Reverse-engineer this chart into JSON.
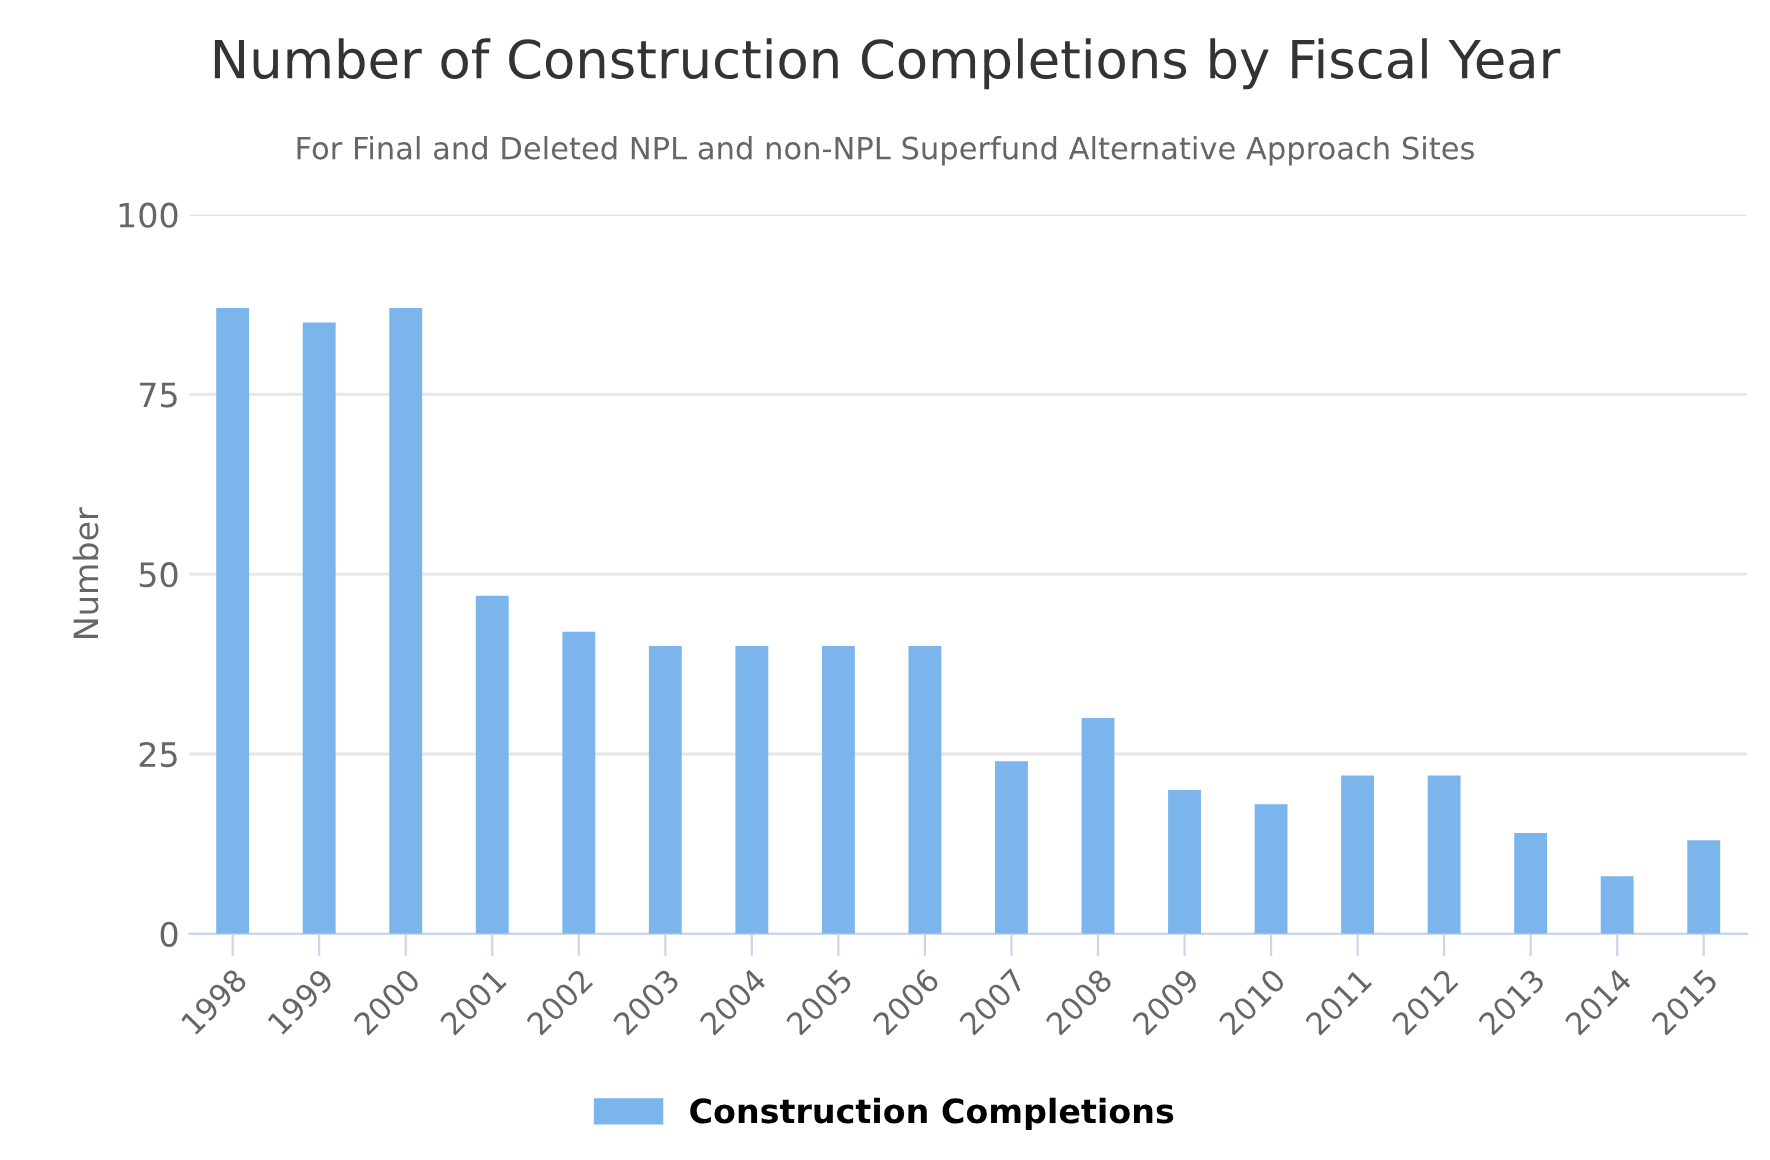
{
  "chart_data": {
    "type": "bar",
    "title": "Number of Construction Completions by Fiscal Year",
    "subtitle": "For Final and Deleted NPL and non-NPL Superfund Alternative Approach Sites",
    "ylabel": "Number",
    "categories": [
      "1998",
      "1999",
      "2000",
      "2001",
      "2002",
      "2003",
      "2004",
      "2005",
      "2006",
      "2007",
      "2008",
      "2009",
      "2010",
      "2011",
      "2012",
      "2013",
      "2014",
      "2015"
    ],
    "series": [
      {
        "name": "Construction Completions",
        "color": "#7cb5ec",
        "values": [
          87,
          85,
          87,
          47,
          42,
          40,
          40,
          40,
          40,
          24,
          30,
          20,
          18,
          22,
          22,
          14,
          8,
          13
        ]
      }
    ],
    "ylim": [
      0,
      100
    ],
    "yticks": [
      0,
      25,
      50,
      75,
      100
    ],
    "grid": "y",
    "legend": "bottom"
  }
}
